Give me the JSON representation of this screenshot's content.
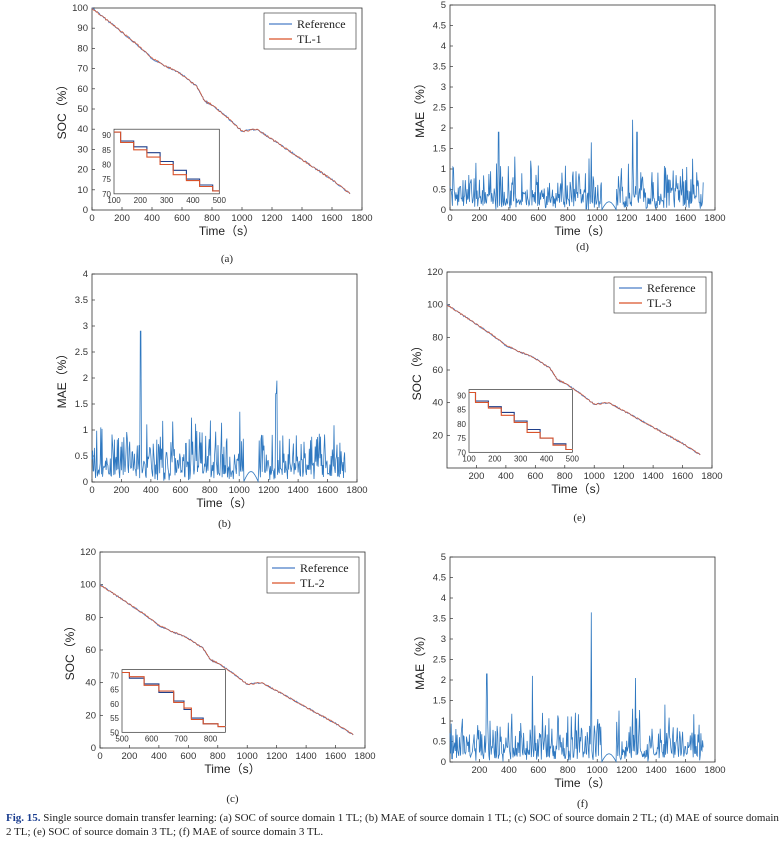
{
  "caption": {
    "label": "Fig. 15.",
    "text": "Single source domain transfer learning: (a) SOC of source domain 1 TL; (b) MAE of source domain 1 TL; (c) SOC of source domain 2 TL; (d) MAE of source domain 2 TL; (e) SOC of source domain 3 TL; (f) MAE of source domain 3 TL."
  },
  "colors": {
    "reference": "#4a7ec8",
    "tl": "#d9532b",
    "mae": "#2f78c0"
  },
  "chart_data": [
    {
      "id": "a",
      "type": "line",
      "subtitle": "(a)",
      "xlabel": "Time（s）",
      "ylabel": "SOC（%）",
      "xlim": [
        0,
        1800
      ],
      "ylim": [
        0,
        100
      ],
      "xticks": [
        0,
        200,
        400,
        600,
        800,
        1000,
        1200,
        1400,
        1600,
        1800
      ],
      "yticks": [
        0,
        10,
        20,
        30,
        40,
        50,
        60,
        70,
        80,
        90,
        100
      ],
      "legend": [
        "Reference",
        "TL-1"
      ],
      "legend_position": "top-right",
      "series": [
        {
          "name": "Reference",
          "x": [
            0,
            100,
            200,
            300,
            400,
            500,
            600,
            700,
            750,
            800,
            900,
            1000,
            1100,
            1200,
            1300,
            1400,
            1500,
            1600,
            1720
          ],
          "y": [
            100,
            94,
            88,
            82,
            75,
            71,
            67,
            61,
            54,
            52,
            46,
            39,
            40,
            35,
            30,
            25,
            20,
            15,
            8
          ]
        },
        {
          "name": "TL-1",
          "x": [
            0,
            100,
            200,
            300,
            400,
            500,
            600,
            700,
            750,
            800,
            900,
            1000,
            1100,
            1200,
            1300,
            1400,
            1500,
            1600,
            1720
          ],
          "y": [
            100,
            94,
            88,
            82,
            75,
            71,
            67,
            61,
            54,
            52,
            46,
            39,
            40,
            35,
            30,
            25,
            20,
            15,
            8
          ]
        }
      ],
      "inset": {
        "xlim": [
          100,
          500
        ],
        "ylim": [
          70,
          92
        ],
        "xticks": [
          100,
          200,
          300,
          400,
          500
        ],
        "yticks": [
          70,
          75,
          80,
          85,
          90
        ],
        "series": [
          {
            "name": "Reference",
            "x": [
              100,
              150,
              200,
              250,
              300,
              350,
              400,
              450,
              500
            ],
            "y": [
              91,
              88,
              86,
              84,
              81,
              78,
              75,
              73,
              71
            ]
          },
          {
            "name": "TL-1",
            "x": [
              100,
              150,
              200,
              250,
              300,
              350,
              400,
              450,
              500
            ],
            "y": [
              91,
              87.5,
              85,
              82.5,
              80,
              76.5,
              74.5,
              72.5,
              71
            ]
          }
        ]
      }
    },
    {
      "id": "b",
      "type": "line",
      "subtitle": "(b)",
      "xlabel": "Time（s）",
      "ylabel": "MAE（%）",
      "xlim": [
        0,
        1800
      ],
      "ylim": [
        0,
        4
      ],
      "xticks": [
        0,
        200,
        400,
        600,
        800,
        1000,
        1200,
        1400,
        1600,
        1800
      ],
      "yticks": [
        0,
        0.5,
        1,
        1.5,
        2,
        2.5,
        3,
        3.5,
        4
      ],
      "series": [
        {
          "name": "",
          "peaks": [
            [
              330,
              2.9
            ],
            [
              1255,
              1.95
            ],
            [
              1005,
              1.35
            ],
            [
              1250,
              1.7
            ]
          ],
          "xmax": 1720
        }
      ]
    },
    {
      "id": "c",
      "type": "line",
      "subtitle": "(c)",
      "xlabel": "Time（s）",
      "ylabel": "SOC（%）",
      "xlim": [
        0,
        1800
      ],
      "ylim": [
        0,
        120
      ],
      "xticks": [
        0,
        200,
        400,
        600,
        800,
        1000,
        1200,
        1400,
        1600,
        1800
      ],
      "yticks": [
        0,
        20,
        40,
        60,
        80,
        100,
        120
      ],
      "legend": [
        "Reference",
        "TL-2"
      ],
      "legend_position": "top-right",
      "series": [
        {
          "name": "Reference",
          "x": [
            0,
            100,
            200,
            300,
            400,
            500,
            600,
            700,
            750,
            800,
            900,
            1000,
            1100,
            1200,
            1300,
            1400,
            1500,
            1600,
            1720
          ],
          "y": [
            100,
            94,
            88,
            82,
            75,
            71,
            67,
            61,
            54,
            52,
            46,
            39,
            40,
            35,
            30,
            25,
            20,
            15,
            8
          ]
        },
        {
          "name": "TL-2",
          "x": [
            0,
            100,
            200,
            300,
            400,
            500,
            600,
            700,
            750,
            800,
            900,
            1000,
            1100,
            1200,
            1300,
            1400,
            1500,
            1600,
            1720
          ],
          "y": [
            100,
            94,
            88,
            82,
            75,
            71,
            67,
            61,
            54,
            52,
            46,
            39,
            40,
            35,
            30,
            25,
            20,
            15,
            8
          ]
        }
      ],
      "inset": {
        "xlim": [
          500,
          850
        ],
        "ylim": [
          50,
          72
        ],
        "xticks": [
          500,
          600,
          700,
          800
        ],
        "yticks": [
          50,
          55,
          60,
          65,
          70
        ],
        "series": [
          {
            "name": "Reference",
            "x": [
              500,
              550,
              600,
              650,
              700,
              720,
              750,
              800,
              850
            ],
            "y": [
              71,
              69,
              67,
              64,
              61,
              58,
              55,
              53,
              52
            ]
          },
          {
            "name": "TL-2",
            "x": [
              500,
              550,
              600,
              650,
              700,
              720,
              750,
              800,
              850
            ],
            "y": [
              71,
              69.5,
              66.5,
              64.5,
              60.5,
              58.5,
              54.5,
              53,
              52
            ]
          }
        ]
      }
    },
    {
      "id": "d",
      "type": "line",
      "subtitle": "(d)",
      "xlabel": "Time（s）",
      "ylabel": "MAE（%）",
      "xlim": [
        0,
        1800
      ],
      "ylim": [
        0,
        5
      ],
      "xticks": [
        0,
        200,
        400,
        600,
        800,
        1000,
        1200,
        1400,
        1600,
        1800
      ],
      "yticks": [
        0,
        0.5,
        1,
        1.5,
        2,
        2.5,
        3,
        3.5,
        4,
        4.5,
        5
      ],
      "series": [
        {
          "name": "",
          "peaks": [
            [
              330,
              1.9
            ],
            [
              1240,
              2.2
            ],
            [
              960,
              1.65
            ],
            [
              1270,
              1.9
            ]
          ],
          "xmax": 1720
        }
      ]
    },
    {
      "id": "e",
      "type": "line",
      "subtitle": "(e)",
      "xlabel": "Time（s）",
      "ylabel": "SOC（%）",
      "xlim": [
        0,
        1800
      ],
      "ylim": [
        0,
        120
      ],
      "xticks": [
        200,
        400,
        600,
        800,
        1000,
        1200,
        1400,
        1600,
        1800
      ],
      "yticks": [
        20,
        40,
        60,
        80,
        100,
        120
      ],
      "legend": [
        "Reference",
        "TL-3"
      ],
      "legend_position": "top-right",
      "series": [
        {
          "name": "Reference",
          "x": [
            0,
            100,
            200,
            300,
            400,
            500,
            600,
            700,
            750,
            800,
            900,
            1000,
            1100,
            1200,
            1300,
            1400,
            1500,
            1600,
            1720
          ],
          "y": [
            100,
            94,
            88,
            82,
            75,
            71,
            67,
            61,
            54,
            52,
            46,
            39,
            40,
            35,
            30,
            25,
            20,
            15,
            8
          ]
        },
        {
          "name": "TL-3",
          "x": [
            0,
            100,
            200,
            300,
            400,
            500,
            600,
            700,
            750,
            800,
            900,
            1000,
            1100,
            1200,
            1300,
            1400,
            1500,
            1600,
            1720
          ],
          "y": [
            100,
            94,
            88,
            82,
            75,
            71,
            67,
            61,
            54,
            52,
            46,
            39,
            40,
            35,
            30,
            25,
            20,
            15,
            8
          ]
        }
      ],
      "inset": {
        "xlim": [
          100,
          500
        ],
        "ylim": [
          70,
          92
        ],
        "xticks": [
          100,
          200,
          300,
          400,
          500
        ],
        "yticks": [
          70,
          75,
          80,
          85,
          90
        ],
        "series": [
          {
            "name": "Reference",
            "x": [
              100,
              150,
              200,
              250,
              300,
              350,
              400,
              450,
              500
            ],
            "y": [
              91,
              88,
              86,
              84,
              81,
              78,
              75,
              73,
              71
            ]
          },
          {
            "name": "TL-3",
            "x": [
              100,
              150,
              200,
              250,
              300,
              350,
              400,
              450,
              500
            ],
            "y": [
              91,
              87.5,
              85.5,
              83,
              80.5,
              77,
              75,
              72.5,
              71
            ]
          }
        ]
      }
    },
    {
      "id": "f",
      "type": "line",
      "subtitle": "(f)",
      "xlabel": "Time（s）",
      "ylabel": "MAE（%）",
      "xlim": [
        0,
        1800
      ],
      "ylim": [
        0,
        5
      ],
      "xticks": [
        200,
        400,
        600,
        800,
        1000,
        1200,
        1400,
        1600,
        1800
      ],
      "yticks": [
        0,
        0.5,
        1,
        1.5,
        2,
        2.5,
        3,
        3.5,
        4,
        4.5,
        5
      ],
      "series": [
        {
          "name": "",
          "peaks": [
            [
              960,
              3.65
            ],
            [
              250,
              2.15
            ],
            [
              560,
              2.1
            ],
            [
              1260,
              2.05
            ]
          ],
          "xmax": 1720
        }
      ]
    }
  ]
}
